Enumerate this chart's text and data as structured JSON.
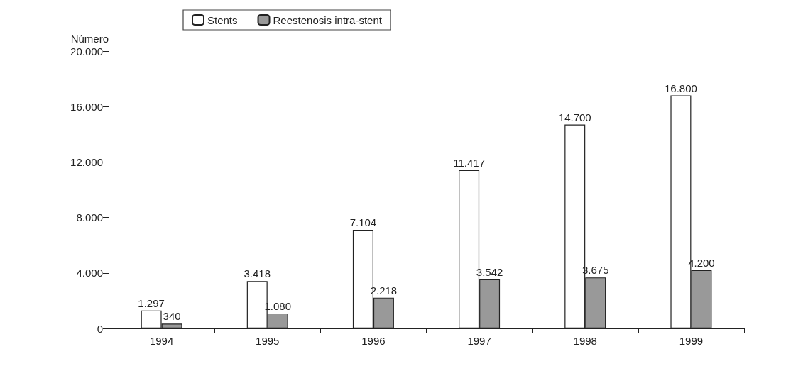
{
  "chart_data": {
    "type": "bar",
    "ylabel": "Número",
    "categories": [
      "1994",
      "1995",
      "1996",
      "1997",
      "1998",
      "1999"
    ],
    "series": [
      {
        "name": "Stents",
        "color": "#ffffff",
        "values": [
          1297,
          3418,
          7104,
          11417,
          14700,
          16800
        ],
        "value_labels": [
          "1.297",
          "3.418",
          "7.104",
          "11.417",
          "14.700",
          "16.800"
        ]
      },
      {
        "name": "Reestenosis intra-stent",
        "color": "#999999",
        "values": [
          340,
          1080,
          2218,
          3542,
          3675,
          4200
        ],
        "value_labels": [
          "340",
          "1.080",
          "2.218",
          "3.542",
          "3.675",
          "4.200"
        ]
      }
    ],
    "ylim": [
      0,
      20000
    ],
    "yticks": [
      0,
      {
        "value": 4000,
        "label": "4.000"
      },
      {
        "value": 8000,
        "label": "8.000"
      },
      {
        "value": 12000,
        "label": "12.000"
      },
      {
        "value": 16000,
        "label": "16.000"
      },
      {
        "value": 20000,
        "label": "20.000"
      }
    ],
    "grid": false,
    "legend": "top left"
  }
}
